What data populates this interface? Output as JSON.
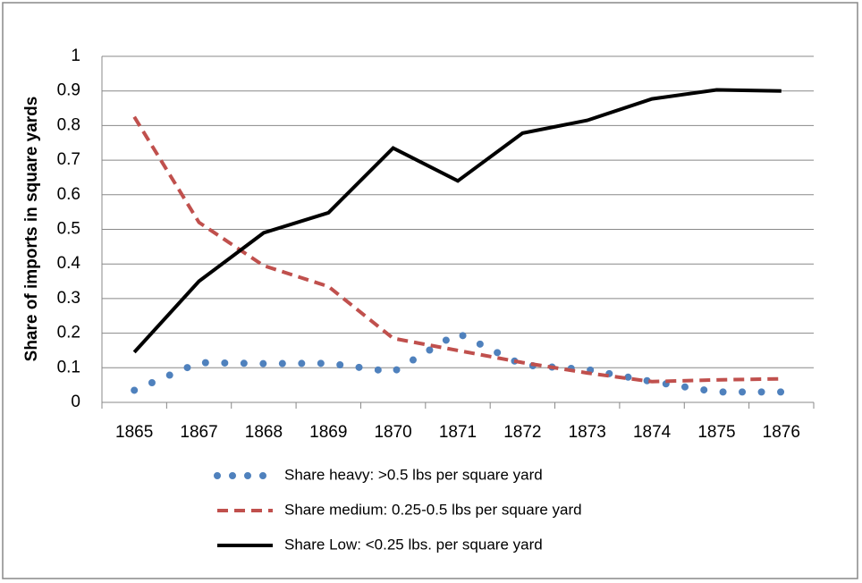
{
  "chart_data": {
    "type": "line",
    "y_label": "Share of imports in square yards",
    "categories": [
      "1865",
      "1867",
      "1868",
      "1869",
      "1870",
      "1871",
      "1872",
      "1873",
      "1874",
      "1875",
      "1876"
    ],
    "series": [
      {
        "name": "Share heavy: >0.5 lbs per square yard",
        "color": "#4f81bd",
        "style": "dotted",
        "values": [
          0.035,
          0.115,
          0.112,
          0.113,
          0.088,
          0.2,
          0.108,
          0.095,
          0.06,
          0.03,
          0.03
        ]
      },
      {
        "name": "Share medium: 0.25-0.5 lbs per square yard",
        "color": "#c0504d",
        "style": "dashed",
        "values": [
          0.825,
          0.52,
          0.395,
          0.335,
          0.185,
          0.15,
          0.115,
          0.085,
          0.06,
          0.065,
          0.068
        ]
      },
      {
        "name": "Share Low: <0.25 lbs. per square yard",
        "color": "#000000",
        "style": "solid",
        "values": [
          0.145,
          0.35,
          0.49,
          0.548,
          0.735,
          0.64,
          0.778,
          0.815,
          0.877,
          0.903,
          0.9
        ]
      }
    ],
    "ylim": [
      0,
      1
    ],
    "yticks": [
      0,
      0.1,
      0.2,
      0.3,
      0.4,
      0.5,
      0.6,
      0.7,
      0.8,
      0.9,
      1
    ],
    "grid": true
  }
}
